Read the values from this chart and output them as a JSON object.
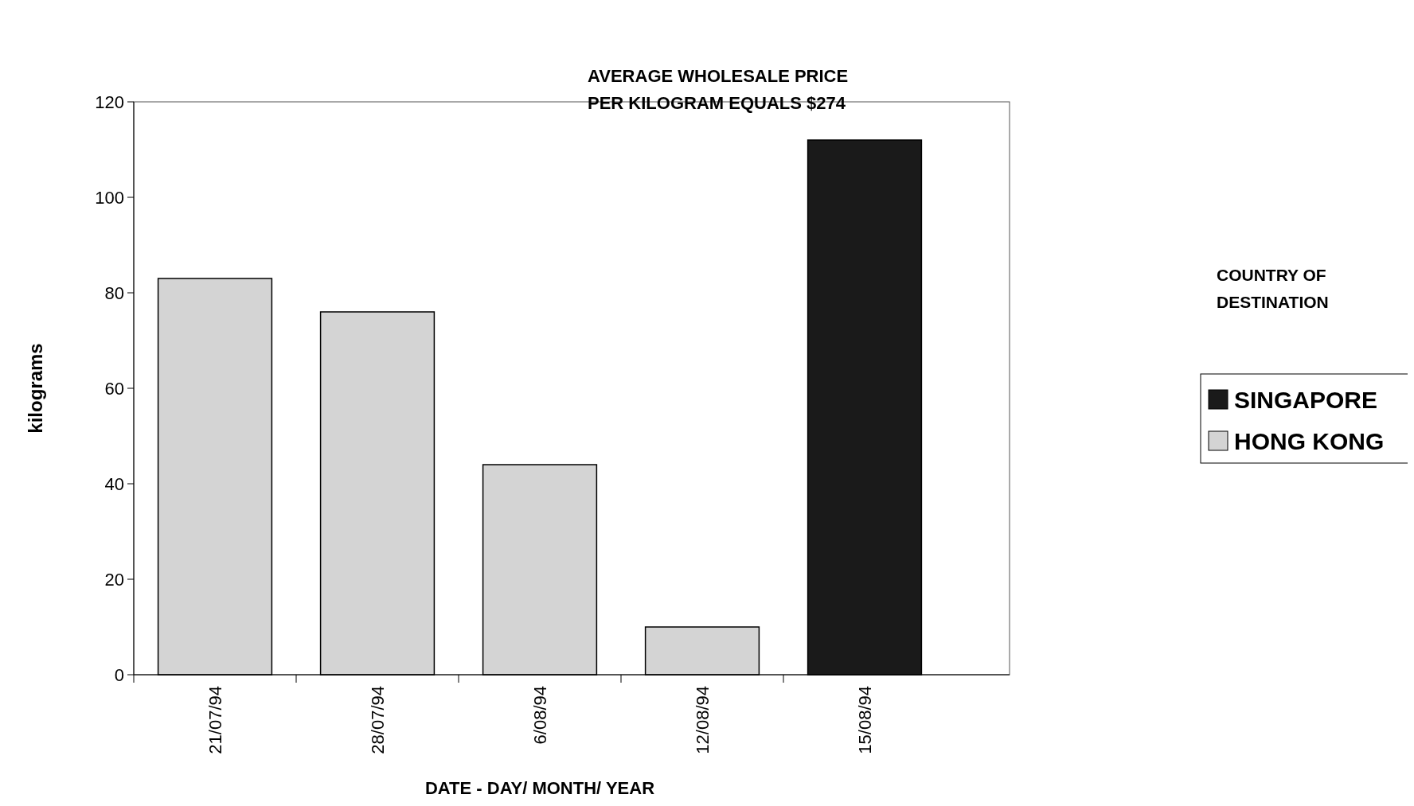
{
  "chart_data": {
    "type": "bar",
    "stacked": true,
    "xlabel": "DATE - DAY/ MONTH/ YEAR",
    "ylabel": "kilograms",
    "legend_title": "COUNTRY OF DESTINATION",
    "legend": "right",
    "annotations": [
      "AVERAGE WHOLESALE PRICE PER KILOGRAM EQUALS $274"
    ],
    "categories": [
      "21/07/94",
      "28/07/94",
      "6/08/94",
      "12/08/94",
      "15/08/94"
    ],
    "series": [
      {
        "name": "SINGAPORE",
        "color": "#1a1a1a",
        "values": [
          null,
          null,
          null,
          null,
          112
        ]
      },
      {
        "name": "HONG KONG",
        "color": "#d4d4d4",
        "values": [
          83,
          76,
          44,
          10,
          null
        ]
      }
    ],
    "ylim": [
      0,
      120
    ],
    "yticks": [
      0,
      20,
      40,
      60,
      80,
      100,
      120
    ],
    "grid": false
  }
}
